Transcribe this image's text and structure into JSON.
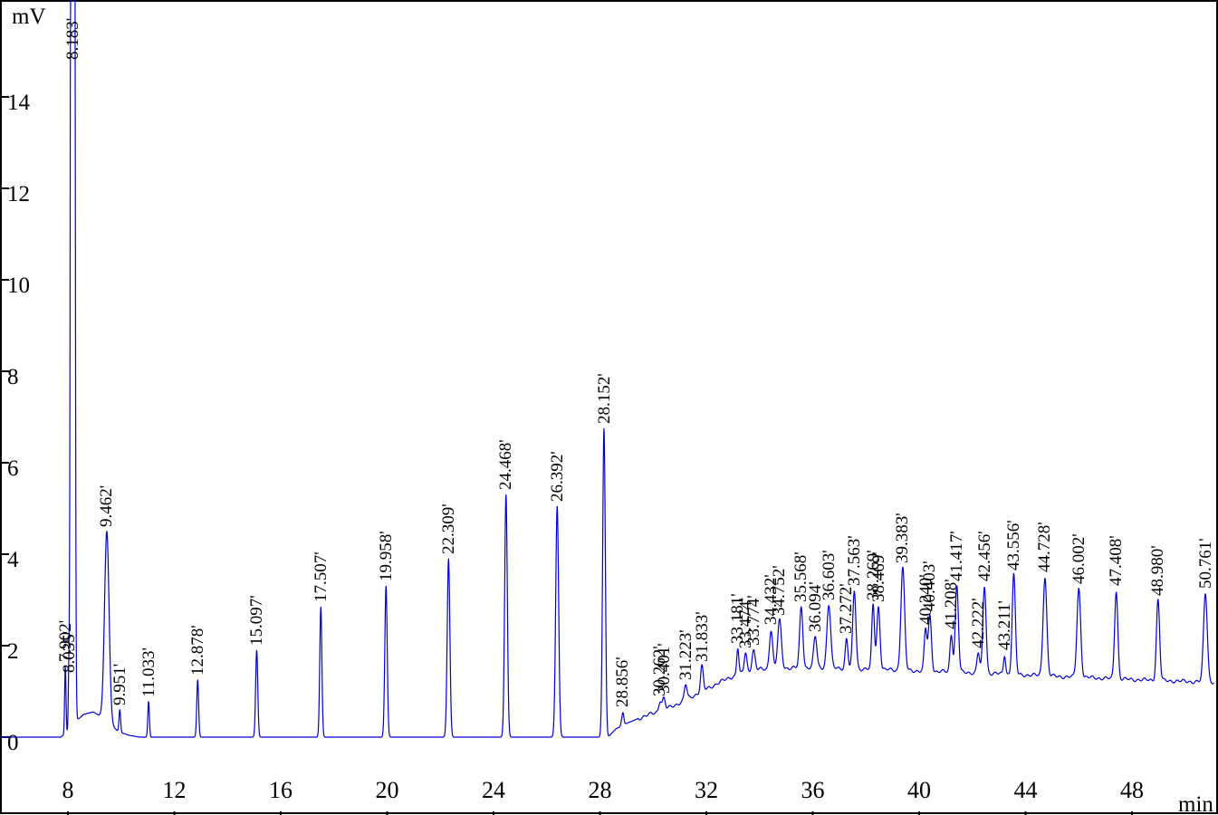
{
  "chart_data": {
    "type": "line",
    "title": "",
    "chart_kind": "gas-chromatogram",
    "xlabel": "min",
    "ylabel": "mV",
    "x_ticks": [
      8,
      12,
      16,
      20,
      24,
      28,
      32,
      36,
      40,
      44,
      48
    ],
    "y_ticks": [
      0,
      2,
      4,
      6,
      8,
      10,
      12,
      14
    ],
    "xlim": [
      5.52,
      51.08
    ],
    "ylim": [
      0,
      16.08
    ],
    "grid": false,
    "legend": false,
    "trace_color": "#0000dd",
    "frame_color": "#000000",
    "peaks": [
      {
        "rt": 7.902,
        "label": "7.902'",
        "apex_mV": 1.55,
        "sigma_min": 0.025
      },
      {
        "rt": 8.035,
        "label": "8.035'",
        "apex_mV": 1.3,
        "sigma_min": 0.022
      },
      {
        "rt": 8.183,
        "label": "8.183'",
        "apex_mV": 16.08,
        "sigma_min": 0.045,
        "clipped": true
      },
      {
        "rt": 9.462,
        "label": "9.462'",
        "apex_mV": 4.5,
        "sigma_min": 0.085
      },
      {
        "rt": 9.951,
        "label": "9.951'",
        "apex_mV": 0.6,
        "sigma_min": 0.03
      },
      {
        "rt": 11.033,
        "label": "11.033'",
        "apex_mV": 0.78,
        "sigma_min": 0.03
      },
      {
        "rt": 12.878,
        "label": "12.878'",
        "apex_mV": 1.25,
        "sigma_min": 0.035
      },
      {
        "rt": 15.097,
        "label": "15.097'",
        "apex_mV": 1.9,
        "sigma_min": 0.04
      },
      {
        "rt": 17.507,
        "label": "17.507'",
        "apex_mV": 2.85,
        "sigma_min": 0.04
      },
      {
        "rt": 19.958,
        "label": "19.958'",
        "apex_mV": 3.3,
        "sigma_min": 0.045
      },
      {
        "rt": 22.309,
        "label": "22.309'",
        "apex_mV": 3.9,
        "sigma_min": 0.05
      },
      {
        "rt": 24.468,
        "label": "24.468'",
        "apex_mV": 5.3,
        "sigma_min": 0.05
      },
      {
        "rt": 26.392,
        "label": "26.392'",
        "apex_mV": 5.05,
        "sigma_min": 0.055
      },
      {
        "rt": 28.152,
        "label": "28.152'",
        "apex_mV": 6.75,
        "sigma_min": 0.05
      },
      {
        "rt": 28.856,
        "label": "28.856'",
        "apex_mV": 0.55,
        "sigma_min": 0.04
      },
      {
        "rt": 30.262,
        "label": "30.262'",
        "apex_mV": 0.8,
        "sigma_min": 0.05
      },
      {
        "rt": 30.401,
        "label": "30.401'",
        "apex_mV": 0.85,
        "sigma_min": 0.05
      },
      {
        "rt": 31.223,
        "label": "31.223'",
        "apex_mV": 1.15,
        "sigma_min": 0.05
      },
      {
        "rt": 31.833,
        "label": "31.833'",
        "apex_mV": 1.55,
        "sigma_min": 0.05
      },
      {
        "rt": 33.181,
        "label": "33.181'",
        "apex_mV": 1.95,
        "sigma_min": 0.04
      },
      {
        "rt": 33.474,
        "label": "33.474'",
        "apex_mV": 1.85,
        "sigma_min": 0.05
      },
      {
        "rt": 33.774,
        "label": "33.774'",
        "apex_mV": 1.9,
        "sigma_min": 0.06
      },
      {
        "rt": 34.432,
        "label": "34.432'",
        "apex_mV": 2.35,
        "sigma_min": 0.06
      },
      {
        "rt": 34.752,
        "label": "34.752'",
        "apex_mV": 2.55,
        "sigma_min": 0.07
      },
      {
        "rt": 35.568,
        "label": "35.568'",
        "apex_mV": 2.85,
        "sigma_min": 0.06
      },
      {
        "rt": 36.094,
        "label": "36.094'",
        "apex_mV": 2.2,
        "sigma_min": 0.06
      },
      {
        "rt": 36.603,
        "label": "36.603'",
        "apex_mV": 2.9,
        "sigma_min": 0.07
      },
      {
        "rt": 37.272,
        "label": "37.272'",
        "apex_mV": 2.15,
        "sigma_min": 0.05
      },
      {
        "rt": 37.563,
        "label": "37.563'",
        "apex_mV": 3.2,
        "sigma_min": 0.06
      },
      {
        "rt": 38.269,
        "label": "38.269'",
        "apex_mV": 2.9,
        "sigma_min": 0.05
      },
      {
        "rt": 38.469,
        "label": "38.469'",
        "apex_mV": 2.85,
        "sigma_min": 0.06
      },
      {
        "rt": 39.383,
        "label": "39.383'",
        "apex_mV": 3.7,
        "sigma_min": 0.07
      },
      {
        "rt": 40.24,
        "label": "40.240'",
        "apex_mV": 2.35,
        "sigma_min": 0.05
      },
      {
        "rt": 40.403,
        "label": "40.403'",
        "apex_mV": 2.65,
        "sigma_min": 0.06
      },
      {
        "rt": 41.208,
        "label": "41.208'",
        "apex_mV": 2.25,
        "sigma_min": 0.05
      },
      {
        "rt": 41.417,
        "label": "41.417'",
        "apex_mV": 3.3,
        "sigma_min": 0.06
      },
      {
        "rt": 42.222,
        "label": "42.222'",
        "apex_mV": 1.85,
        "sigma_min": 0.05
      },
      {
        "rt": 42.456,
        "label": "42.456'",
        "apex_mV": 3.3,
        "sigma_min": 0.06
      },
      {
        "rt": 43.211,
        "label": "43.211'",
        "apex_mV": 1.8,
        "sigma_min": 0.04
      },
      {
        "rt": 43.556,
        "label": "43.556'",
        "apex_mV": 3.55,
        "sigma_min": 0.06
      },
      {
        "rt": 44.728,
        "label": "44.728'",
        "apex_mV": 3.5,
        "sigma_min": 0.07
      },
      {
        "rt": 46.002,
        "label": "46.002'",
        "apex_mV": 3.25,
        "sigma_min": 0.07
      },
      {
        "rt": 47.408,
        "label": "47.408'",
        "apex_mV": 3.2,
        "sigma_min": 0.06
      },
      {
        "rt": 48.98,
        "label": "48.980'",
        "apex_mV": 3.0,
        "sigma_min": 0.06
      },
      {
        "rt": 50.761,
        "label": "50.761'",
        "apex_mV": 3.15,
        "sigma_min": 0.07
      }
    ],
    "baseline_nodes": [
      [
        5.52,
        0
      ],
      [
        7.72,
        0
      ],
      [
        7.85,
        0.05
      ],
      [
        8.0,
        0.12
      ],
      [
        8.3,
        0.35
      ],
      [
        8.6,
        0.5
      ],
      [
        8.95,
        0.55
      ],
      [
        9.25,
        0.45
      ],
      [
        9.65,
        0.25
      ],
      [
        9.9,
        0.12
      ],
      [
        10.3,
        0.04
      ],
      [
        10.7,
        0
      ],
      [
        28.3,
        0
      ],
      [
        28.6,
        0.18
      ],
      [
        29.0,
        0.3
      ],
      [
        29.5,
        0.42
      ],
      [
        30.0,
        0.52
      ],
      [
        30.5,
        0.62
      ],
      [
        31.0,
        0.75
      ],
      [
        31.5,
        0.9
      ],
      [
        32.0,
        1.05
      ],
      [
        32.5,
        1.2
      ],
      [
        33.0,
        1.33
      ],
      [
        33.5,
        1.42
      ],
      [
        34.0,
        1.48
      ],
      [
        34.5,
        1.5
      ],
      [
        35.5,
        1.52
      ],
      [
        36.5,
        1.52
      ],
      [
        37.5,
        1.5
      ],
      [
        38.5,
        1.48
      ],
      [
        39.5,
        1.46
      ],
      [
        40.5,
        1.44
      ],
      [
        41.5,
        1.42
      ],
      [
        42.5,
        1.4
      ],
      [
        43.5,
        1.37
      ],
      [
        44.5,
        1.35
      ],
      [
        45.5,
        1.32
      ],
      [
        46.5,
        1.3
      ],
      [
        47.5,
        1.27
      ],
      [
        48.5,
        1.25
      ],
      [
        49.5,
        1.23
      ],
      [
        50.5,
        1.21
      ],
      [
        51.1,
        1.2
      ]
    ]
  }
}
